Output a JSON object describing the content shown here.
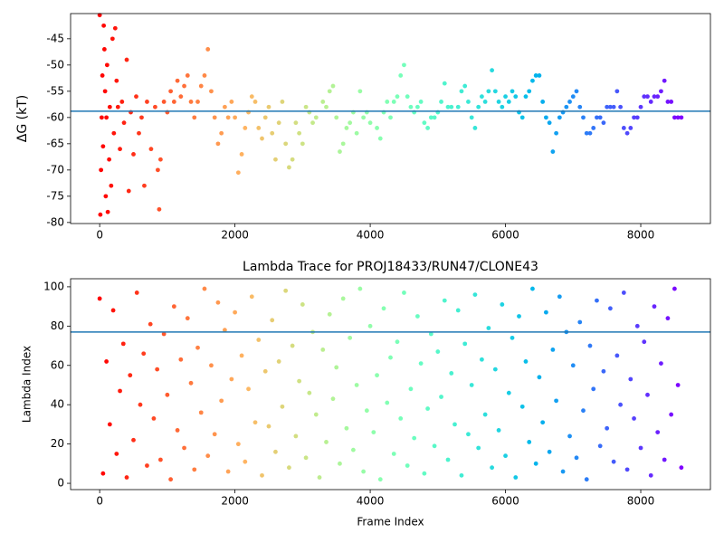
{
  "chart_data": [
    {
      "type": "scatter",
      "y_label": "ΔG (kT)",
      "colormap": "rainbow_r",
      "hline": -58.8,
      "hline_color": "#1f77b4",
      "xlim": [
        -430,
        9030
      ],
      "ylim": [
        -80.2,
        -40.2
      ],
      "xticks": [
        0,
        2000,
        4000,
        6000,
        8000
      ],
      "yticks": [
        -80,
        -75,
        -70,
        -65,
        -60,
        -55,
        -50,
        -45
      ],
      "x": [
        0,
        10,
        20,
        30,
        40,
        50,
        60,
        70,
        80,
        90,
        100,
        110,
        120,
        140,
        150,
        170,
        190,
        210,
        230,
        250,
        270,
        300,
        330,
        360,
        400,
        430,
        460,
        500,
        540,
        580,
        620,
        660,
        700,
        760,
        820,
        860,
        880,
        900,
        950,
        1000,
        1050,
        1100,
        1150,
        1200,
        1250,
        1300,
        1350,
        1400,
        1450,
        1500,
        1550,
        1600,
        1650,
        1700,
        1750,
        1800,
        1850,
        1900,
        1950,
        2000,
        2050,
        2100,
        2150,
        2200,
        2250,
        2300,
        2350,
        2400,
        2450,
        2500,
        2550,
        2600,
        2650,
        2700,
        2750,
        2800,
        2850,
        2900,
        2950,
        3000,
        3050,
        3100,
        3150,
        3200,
        3300,
        3350,
        3400,
        3450,
        3500,
        3550,
        3600,
        3650,
        3700,
        3750,
        3800,
        3850,
        3900,
        3950,
        4000,
        4100,
        4150,
        4200,
        4250,
        4300,
        4350,
        4400,
        4450,
        4500,
        4550,
        4600,
        4650,
        4700,
        4750,
        4800,
        4850,
        4900,
        4950,
        5000,
        5050,
        5100,
        5150,
        5200,
        5300,
        5350,
        5400,
        5450,
        5500,
        5550,
        5600,
        5650,
        5700,
        5750,
        5800,
        5850,
        5900,
        5950,
        6000,
        6050,
        6100,
        6150,
        6200,
        6250,
        6300,
        6350,
        6400,
        6450,
        6500,
        6550,
        6600,
        6650,
        6700,
        6750,
        6800,
        6850,
        6900,
        6950,
        7000,
        7050,
        7100,
        7150,
        7200,
        7250,
        7300,
        7350,
        7400,
        7450,
        7500,
        7550,
        7600,
        7650,
        7700,
        7750,
        7800,
        7850,
        7900,
        7950,
        8000,
        8050,
        8100,
        8150,
        8200,
        8250,
        8300,
        8350,
        8400,
        8450,
        8500,
        8550,
        8600
      ],
      "values": [
        -40.5,
        -78.5,
        -70,
        -60,
        -52,
        -65.5,
        -42.5,
        -47,
        -55,
        -75,
        -60,
        -50,
        -78,
        -68,
        -58,
        -73,
        -45,
        -63,
        -43,
        -53,
        -58,
        -66,
        -57,
        -61,
        -49,
        -74,
        -59,
        -67,
        -56,
        -63,
        -60,
        -73,
        -57,
        -66,
        -58,
        -70,
        -77.5,
        -68,
        -57,
        -59,
        -55,
        -57,
        -53,
        -56,
        -54,
        -52,
        -57,
        -60,
        -57,
        -54,
        -52,
        -47,
        -55,
        -60,
        -65,
        -63,
        -58,
        -60,
        -57,
        -60,
        -70.5,
        -67,
        -62,
        -59,
        -56,
        -57,
        -62,
        -64,
        -60,
        -58,
        -63,
        -68,
        -61,
        -57,
        -65,
        -69.5,
        -68,
        -61,
        -63,
        -65,
        -58,
        -59,
        -61,
        -60,
        -57,
        -58,
        -55,
        -54,
        -60,
        -66.5,
        -65,
        -62,
        -61,
        -59,
        -63,
        -55,
        -60,
        -59,
        -61,
        -62,
        -64,
        -59,
        -57,
        -60,
        -57,
        -56,
        -52,
        -50,
        -56,
        -58,
        -59,
        -58,
        -57,
        -61,
        -62,
        -60,
        -60,
        -59,
        -57,
        -53.5,
        -58,
        -58,
        -58,
        -55,
        -54,
        -57,
        -60,
        -62,
        -58,
        -56,
        -57,
        -55,
        -51,
        -55,
        -57,
        -58,
        -56,
        -57,
        -55,
        -56,
        -59,
        -60,
        -56,
        -55,
        -53,
        -52,
        -52,
        -57,
        -60,
        -61,
        -66.5,
        -63,
        -60,
        -59,
        -58,
        -57,
        -56,
        -55,
        -58,
        -60,
        -63,
        -63,
        -62,
        -60,
        -60,
        -61,
        -58,
        -58,
        -58,
        -55,
        -58,
        -62,
        -63,
        -62,
        -60,
        -60,
        -58,
        -56,
        -56,
        -57,
        -56,
        -56,
        -55,
        -53,
        -57,
        -57,
        -60,
        -60,
        -60
      ]
    },
    {
      "type": "scatter",
      "title": "Lambda Trace for PROJ18433/RUN47/CLONE43",
      "x_label": "Frame Index",
      "y_label": "Lambda Index",
      "colormap": "rainbow_r",
      "hline": 77,
      "hline_color": "#1f77b4",
      "xlim": [
        -430,
        9030
      ],
      "ylim": [
        -3.2,
        104.1
      ],
      "xticks": [
        0,
        2000,
        4000,
        6000,
        8000
      ],
      "yticks": [
        0,
        20,
        40,
        60,
        80,
        100
      ],
      "x": [
        0,
        50,
        100,
        150,
        200,
        250,
        300,
        350,
        400,
        450,
        500,
        550,
        600,
        650,
        700,
        750,
        800,
        850,
        900,
        950,
        1000,
        1050,
        1100,
        1150,
        1200,
        1250,
        1300,
        1350,
        1400,
        1450,
        1500,
        1550,
        1600,
        1650,
        1700,
        1750,
        1800,
        1850,
        1900,
        1950,
        2000,
        2050,
        2100,
        2150,
        2200,
        2250,
        2300,
        2350,
        2400,
        2450,
        2500,
        2550,
        2600,
        2650,
        2700,
        2750,
        2800,
        2850,
        2900,
        2950,
        3000,
        3050,
        3100,
        3150,
        3200,
        3250,
        3300,
        3350,
        3400,
        3450,
        3500,
        3550,
        3600,
        3650,
        3700,
        3750,
        3800,
        3850,
        3900,
        3950,
        4000,
        4050,
        4100,
        4150,
        4200,
        4250,
        4300,
        4350,
        4400,
        4450,
        4500,
        4550,
        4600,
        4650,
        4700,
        4750,
        4800,
        4850,
        4900,
        4950,
        5000,
        5050,
        5100,
        5150,
        5200,
        5250,
        5300,
        5350,
        5400,
        5450,
        5500,
        5550,
        5600,
        5650,
        5700,
        5750,
        5800,
        5850,
        5900,
        5950,
        6000,
        6050,
        6100,
        6150,
        6200,
        6250,
        6300,
        6350,
        6400,
        6450,
        6500,
        6550,
        6600,
        6650,
        6700,
        6750,
        6800,
        6850,
        6900,
        6950,
        7000,
        7050,
        7100,
        7150,
        7200,
        7250,
        7300,
        7350,
        7400,
        7450,
        7500,
        7550,
        7600,
        7650,
        7700,
        7750,
        7800,
        7850,
        7900,
        7950,
        8000,
        8050,
        8100,
        8150,
        8200,
        8250,
        8300,
        8350,
        8400,
        8450,
        8500,
        8550,
        8600
      ],
      "values": [
        94,
        5,
        62,
        30,
        88,
        15,
        47,
        71,
        3,
        55,
        22,
        97,
        40,
        66,
        9,
        81,
        33,
        58,
        12,
        76,
        45,
        2,
        90,
        27,
        63,
        18,
        84,
        51,
        7,
        69,
        36,
        99,
        14,
        60,
        25,
        92,
        42,
        78,
        6,
        53,
        87,
        20,
        65,
        11,
        48,
        95,
        31,
        73,
        4,
        57,
        29,
        83,
        16,
        62,
        39,
        98,
        8,
        70,
        24,
        52,
        91,
        13,
        46,
        77,
        35,
        3,
        68,
        21,
        86,
        43,
        59,
        10,
        94,
        28,
        74,
        17,
        50,
        99,
        6,
        37,
        80,
        26,
        55,
        2,
        89,
        41,
        64,
        15,
        72,
        33,
        97,
        9,
        48,
        23,
        85,
        61,
        5,
        38,
        76,
        19,
        67,
        44,
        93,
        12,
        56,
        30,
        88,
        4,
        71,
        25,
        50,
        96,
        18,
        63,
        35,
        79,
        8,
        58,
        27,
        91,
        14,
        46,
        74,
        3,
        85,
        39,
        62,
        21,
        99,
        10,
        54,
        31,
        87,
        16,
        68,
        42,
        95,
        6,
        77,
        24,
        60,
        13,
        82,
        37,
        2,
        70,
        48,
        93,
        19,
        57,
        28,
        89,
        11,
        65,
        40,
        97,
        7,
        53,
        33,
        80,
        18,
        72,
        45,
        4,
        90,
        26,
        61,
        12,
        84,
        35,
        99,
        50,
        8
      ]
    }
  ]
}
